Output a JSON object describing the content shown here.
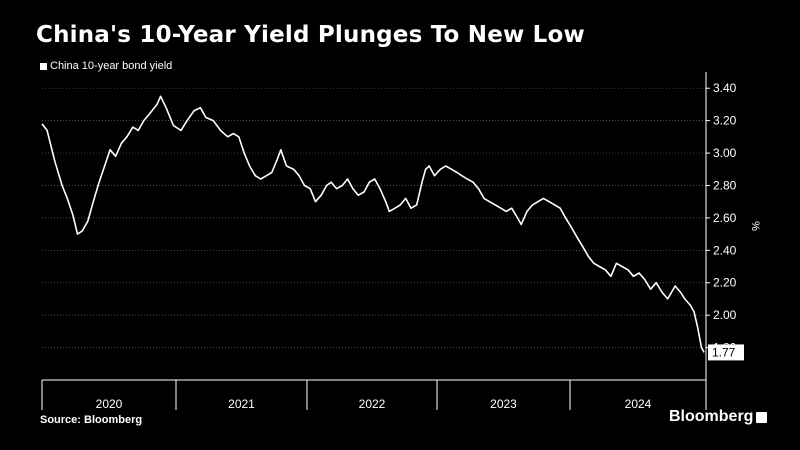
{
  "header": {
    "title": "China's 10-Year Yield Plunges To New Low",
    "legend_label": "China 10-year bond yield"
  },
  "footer": {
    "source": "Source: Bloomberg",
    "brand": "Bloomberg"
  },
  "chart_data": {
    "type": "line",
    "title": "China's 10-Year Yield Plunges To New Low",
    "xlabel": "",
    "ylabel": "%",
    "ylim": [
      1.6,
      3.5
    ],
    "yticks": [
      "3.40",
      "3.20",
      "3.00",
      "2.80",
      "2.60",
      "2.40",
      "2.20",
      "2.00",
      "1.80"
    ],
    "y_axis_side": "right",
    "grid": "horizontal dotted",
    "x_categories": [
      "2020",
      "2021",
      "2022",
      "2023",
      "2024"
    ],
    "last_value_label": "1.77",
    "series": [
      {
        "name": "China 10-year bond yield",
        "color": "#ffffff",
        "points": [
          [
            "2020-01-01",
            3.18
          ],
          [
            "2020-01-15",
            3.14
          ],
          [
            "2020-02-05",
            2.95
          ],
          [
            "2020-02-25",
            2.8
          ],
          [
            "2020-03-10",
            2.72
          ],
          [
            "2020-03-25",
            2.62
          ],
          [
            "2020-04-07",
            2.5
          ],
          [
            "2020-04-20",
            2.52
          ],
          [
            "2020-05-05",
            2.58
          ],
          [
            "2020-05-20",
            2.7
          ],
          [
            "2020-06-05",
            2.82
          ],
          [
            "2020-06-20",
            2.92
          ],
          [
            "2020-07-05",
            3.02
          ],
          [
            "2020-07-20",
            2.98
          ],
          [
            "2020-08-05",
            3.06
          ],
          [
            "2020-08-20",
            3.1
          ],
          [
            "2020-09-05",
            3.16
          ],
          [
            "2020-09-20",
            3.14
          ],
          [
            "2020-10-05",
            3.2
          ],
          [
            "2020-10-20",
            3.24
          ],
          [
            "2020-11-10",
            3.3
          ],
          [
            "2020-11-20",
            3.35
          ],
          [
            "2020-12-05",
            3.28
          ],
          [
            "2020-12-25",
            3.17
          ],
          [
            "2021-01-15",
            3.14
          ],
          [
            "2021-02-01",
            3.2
          ],
          [
            "2021-02-20",
            3.26
          ],
          [
            "2021-03-10",
            3.28
          ],
          [
            "2021-03-25",
            3.22
          ],
          [
            "2021-04-15",
            3.2
          ],
          [
            "2021-05-05",
            3.14
          ],
          [
            "2021-05-25",
            3.1
          ],
          [
            "2021-06-10",
            3.12
          ],
          [
            "2021-06-25",
            3.1
          ],
          [
            "2021-07-10",
            3.0
          ],
          [
            "2021-07-25",
            2.92
          ],
          [
            "2021-08-10",
            2.86
          ],
          [
            "2021-08-25",
            2.84
          ],
          [
            "2021-09-10",
            2.86
          ],
          [
            "2021-09-25",
            2.88
          ],
          [
            "2021-10-10",
            2.96
          ],
          [
            "2021-10-20",
            3.02
          ],
          [
            "2021-11-05",
            2.92
          ],
          [
            "2021-11-25",
            2.9
          ],
          [
            "2021-12-10",
            2.86
          ],
          [
            "2021-12-25",
            2.8
          ],
          [
            "2022-01-10",
            2.78
          ],
          [
            "2022-01-25",
            2.7
          ],
          [
            "2022-02-10",
            2.74
          ],
          [
            "2022-02-25",
            2.8
          ],
          [
            "2022-03-10",
            2.82
          ],
          [
            "2022-03-25",
            2.78
          ],
          [
            "2022-04-10",
            2.8
          ],
          [
            "2022-04-25",
            2.84
          ],
          [
            "2022-05-10",
            2.78
          ],
          [
            "2022-05-25",
            2.74
          ],
          [
            "2022-06-10",
            2.76
          ],
          [
            "2022-06-25",
            2.82
          ],
          [
            "2022-07-10",
            2.84
          ],
          [
            "2022-07-25",
            2.78
          ],
          [
            "2022-08-10",
            2.7
          ],
          [
            "2022-08-20",
            2.64
          ],
          [
            "2022-09-05",
            2.66
          ],
          [
            "2022-09-20",
            2.68
          ],
          [
            "2022-10-05",
            2.72
          ],
          [
            "2022-10-20",
            2.66
          ],
          [
            "2022-11-05",
            2.68
          ],
          [
            "2022-11-20",
            2.82
          ],
          [
            "2022-11-30",
            2.9
          ],
          [
            "2022-12-10",
            2.92
          ],
          [
            "2022-12-25",
            2.86
          ],
          [
            "2023-01-10",
            2.9
          ],
          [
            "2023-01-25",
            2.92
          ],
          [
            "2023-02-10",
            2.9
          ],
          [
            "2023-02-25",
            2.88
          ],
          [
            "2023-03-10",
            2.86
          ],
          [
            "2023-03-25",
            2.84
          ],
          [
            "2023-04-10",
            2.82
          ],
          [
            "2023-04-25",
            2.78
          ],
          [
            "2023-05-10",
            2.72
          ],
          [
            "2023-05-25",
            2.7
          ],
          [
            "2023-06-10",
            2.68
          ],
          [
            "2023-06-25",
            2.66
          ],
          [
            "2023-07-10",
            2.64
          ],
          [
            "2023-07-25",
            2.66
          ],
          [
            "2023-08-10",
            2.6
          ],
          [
            "2023-08-20",
            2.56
          ],
          [
            "2023-09-05",
            2.64
          ],
          [
            "2023-09-20",
            2.68
          ],
          [
            "2023-10-05",
            2.7
          ],
          [
            "2023-10-20",
            2.72
          ],
          [
            "2023-11-05",
            2.7
          ],
          [
            "2023-11-20",
            2.68
          ],
          [
            "2023-12-05",
            2.66
          ],
          [
            "2023-12-20",
            2.6
          ],
          [
            "2024-01-05",
            2.54
          ],
          [
            "2024-01-20",
            2.48
          ],
          [
            "2024-02-05",
            2.42
          ],
          [
            "2024-02-20",
            2.36
          ],
          [
            "2024-03-05",
            2.32
          ],
          [
            "2024-03-20",
            2.3
          ],
          [
            "2024-04-05",
            2.28
          ],
          [
            "2024-04-20",
            2.24
          ],
          [
            "2024-05-05",
            2.32
          ],
          [
            "2024-05-20",
            2.3
          ],
          [
            "2024-06-05",
            2.28
          ],
          [
            "2024-06-20",
            2.24
          ],
          [
            "2024-07-05",
            2.26
          ],
          [
            "2024-07-20",
            2.22
          ],
          [
            "2024-08-05",
            2.16
          ],
          [
            "2024-08-20",
            2.2
          ],
          [
            "2024-09-05",
            2.14
          ],
          [
            "2024-09-20",
            2.1
          ],
          [
            "2024-09-30",
            2.14
          ],
          [
            "2024-10-10",
            2.18
          ],
          [
            "2024-10-25",
            2.14
          ],
          [
            "2024-11-05",
            2.1
          ],
          [
            "2024-11-20",
            2.06
          ],
          [
            "2024-11-30",
            2.02
          ],
          [
            "2024-12-10",
            1.92
          ],
          [
            "2024-12-20",
            1.8
          ],
          [
            "2024-12-27",
            1.77
          ]
        ]
      }
    ]
  }
}
